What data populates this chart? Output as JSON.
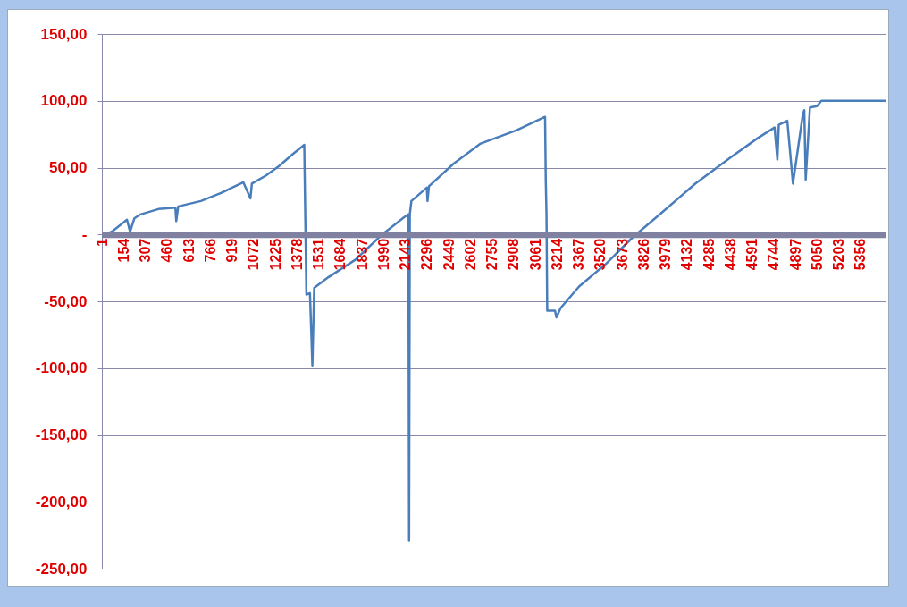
{
  "chart_data": {
    "type": "line",
    "x": [
      1,
      83,
      178,
      200,
      230,
      273,
      400,
      520,
      526,
      540,
      700,
      842,
      1000,
      1050,
      1060,
      1158,
      1250,
      1348,
      1430,
      1432,
      1445,
      1470,
      1487,
      1500,
      1600,
      1790,
      1980,
      2137,
      2165,
      2170,
      2175,
      2186,
      2295,
      2300,
      2310,
      2485,
      2675,
      2930,
      3130,
      3135,
      3140,
      3145,
      3200,
      3210,
      3240,
      3370,
      3560,
      3750,
      3940,
      4190,
      4445,
      4630,
      4750,
      4770,
      4780,
      4840,
      4880,
      4950,
      4960,
      4970,
      5000,
      5050,
      5080,
      5540
    ],
    "values": [
      -2,
      3,
      11,
      2,
      12,
      15,
      19,
      20,
      10,
      21,
      25,
      31,
      39,
      27,
      38,
      44,
      51,
      60,
      67,
      50,
      -45,
      -44,
      -98,
      -40,
      -32,
      -19,
      0,
      13,
      15,
      -229,
      15,
      25,
      35,
      25,
      36,
      53,
      68,
      78,
      88,
      40,
      15,
      -57,
      -57,
      -62,
      -55,
      -39,
      -22,
      -2,
      15,
      38,
      58,
      72,
      80,
      56,
      82,
      85,
      38,
      90,
      93,
      41,
      95,
      96,
      100,
      100
    ],
    "color": "#4a7ebb",
    "xlim": [
      1,
      5540
    ],
    "xticks": [
      1,
      154,
      307,
      460,
      613,
      766,
      919,
      1072,
      1225,
      1378,
      1531,
      1684,
      1837,
      1990,
      2143,
      2296,
      2449,
      2602,
      2755,
      2908,
      3061,
      3214,
      3367,
      3520,
      3673,
      3826,
      3979,
      4132,
      4285,
      4438,
      4591,
      4744,
      4897,
      5050,
      5203,
      5356
    ],
    "ylim": [
      -250,
      150
    ],
    "yticks": [
      {
        "value": -250,
        "label": "-250,00"
      },
      {
        "value": -200,
        "label": "-200,00"
      },
      {
        "value": -150,
        "label": "-150,00"
      },
      {
        "value": -100,
        "label": "-100,00"
      },
      {
        "value": -50,
        "label": "-50,00"
      },
      {
        "value": 0,
        "label": "-"
      },
      {
        "value": 50,
        "label": "50,00"
      },
      {
        "value": 100,
        "label": "100,00"
      },
      {
        "value": 150,
        "label": "150,00"
      }
    ],
    "grid": "y",
    "legend": false,
    "marker": "none",
    "line_style": "solid"
  }
}
